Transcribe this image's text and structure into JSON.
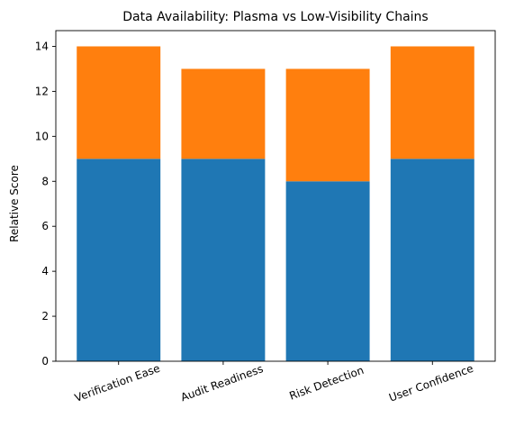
{
  "chart_data": {
    "type": "bar",
    "stacked": true,
    "title": "Data Availability: Plasma vs Low-Visibility Chains",
    "xlabel": "",
    "ylabel": "Relative Score",
    "categories": [
      "Verification Ease",
      "Audit Readiness",
      "Risk Detection",
      "User Confidence"
    ],
    "series": [
      {
        "values": [
          9,
          9,
          8,
          9
        ],
        "color": "#1f77b4"
      },
      {
        "values": [
          5,
          4,
          5,
          5
        ],
        "color": "#ff7f0e"
      }
    ],
    "ylim": [
      0,
      14.7
    ],
    "yticks": [
      0,
      2,
      4,
      6,
      8,
      10,
      12,
      14
    ],
    "grid": false,
    "legend": "none",
    "xtick_rotation": -20
  }
}
